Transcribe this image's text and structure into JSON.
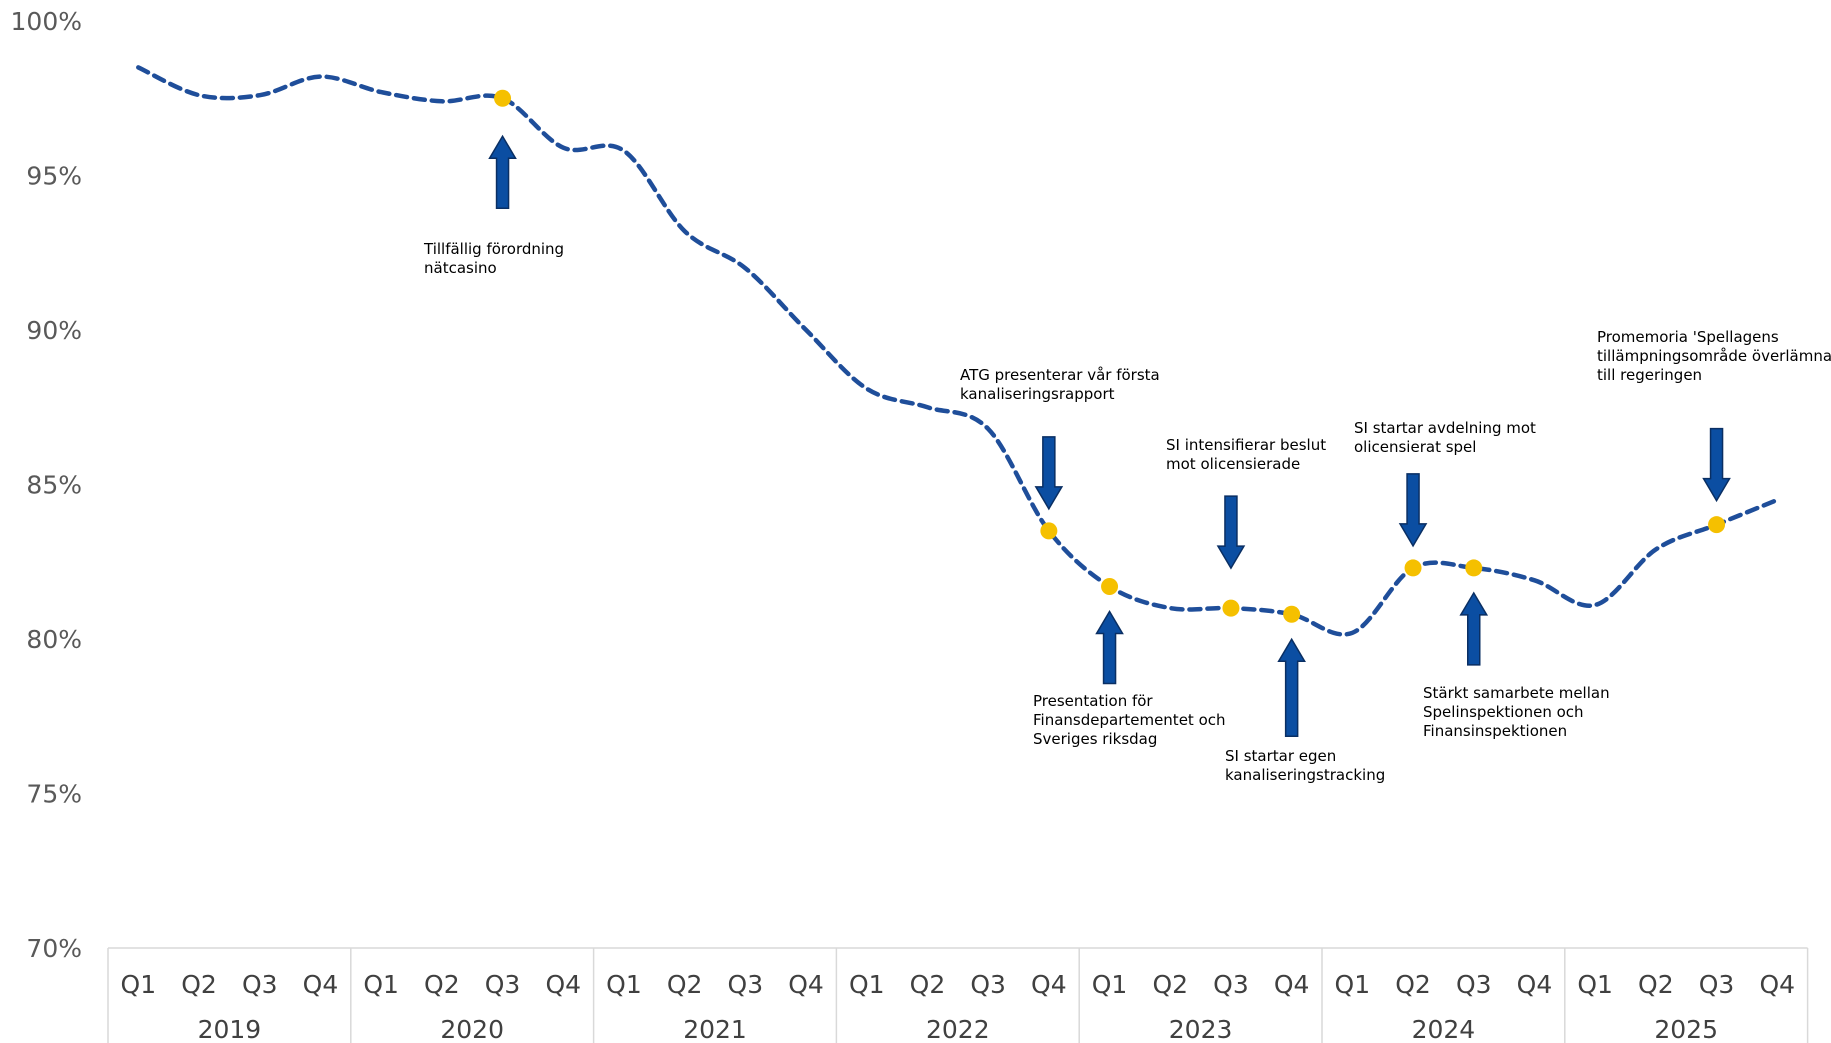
{
  "chart_data": {
    "type": "line",
    "title": "",
    "xlabel": "",
    "ylabel": "",
    "ylim": [
      70,
      100
    ],
    "yticks": [
      "70%",
      "75%",
      "80%",
      "85%",
      "90%",
      "95%",
      "100%"
    ],
    "ytick_values": [
      70,
      75,
      80,
      85,
      90,
      95,
      100
    ],
    "years": [
      "2019",
      "2020",
      "2021",
      "2022",
      "2023",
      "2024",
      "2025"
    ],
    "quarters": [
      "Q1",
      "Q2",
      "Q3",
      "Q4"
    ],
    "grid": false,
    "series": [
      {
        "line_style": "dashed",
        "color": "#1F4E9A",
        "values": [
          98.5,
          97.6,
          97.6,
          98.2,
          97.7,
          97.4,
          97.5,
          95.9,
          95.8,
          93.2,
          92.0,
          90.0,
          88.1,
          87.5,
          86.8,
          83.5,
          81.7,
          81.0,
          81.0,
          80.8,
          80.2,
          82.3,
          82.3,
          81.9,
          81.1,
          82.9,
          83.7,
          84.5
        ]
      }
    ],
    "markers": [
      {
        "index": 6,
        "value": 97.5
      },
      {
        "index": 15,
        "value": 83.5
      },
      {
        "index": 16,
        "value": 81.7
      },
      {
        "index": 18,
        "value": 81.0
      },
      {
        "index": 19,
        "value": 80.8
      },
      {
        "index": 21,
        "value": 82.3
      },
      {
        "index": 22,
        "value": 82.3
      },
      {
        "index": 26,
        "value": 83.7
      }
    ],
    "marker_color": "#F5C000",
    "arrow_color": "#0B4EA2",
    "annotations": [
      {
        "index": 6,
        "value": 97.5,
        "lines": [
          "Tillfällig förordning",
          "nätcasino"
        ]
      },
      {
        "index": 15,
        "value": 83.5,
        "lines": [
          "ATG presenterar vår första",
          "kanaliseringsrapport"
        ]
      },
      {
        "index": 16,
        "value": 81.7,
        "lines": [
          "Presentation för",
          "Finansdepartementet och",
          "Sveriges riksdag"
        ]
      },
      {
        "index": 18,
        "value": 81.0,
        "lines": [
          "SI intensifierar beslut",
          "mot olicensierade"
        ]
      },
      {
        "index": 19,
        "value": 80.8,
        "lines": [
          "SI startar egen",
          "kanaliseringstracking"
        ]
      },
      {
        "index": 21,
        "value": 82.3,
        "lines": [
          "SI startar avdelning mot",
          "olicensierat spel"
        ]
      },
      {
        "index": 22,
        "value": 82.3,
        "lines": [
          "Stärkt samarbete mellan",
          "Spelinspektionen och",
          "Finansinspektionen"
        ]
      },
      {
        "index": 26,
        "value": 83.7,
        "lines": [
          "Promemoria 'Spellagens",
          "tillämpningsområde överlämnas",
          "till regeringen"
        ]
      }
    ]
  }
}
